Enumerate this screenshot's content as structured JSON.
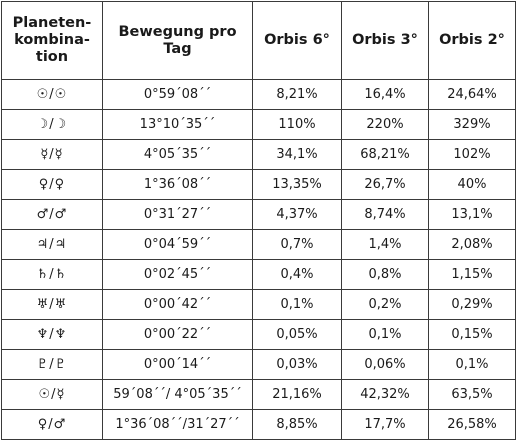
{
  "table": {
    "headers": [
      "Planeten-\nkombina-\ntion",
      "Bewegung pro\nTag",
      "Orbis 6°",
      "Orbis 3°",
      "Orbis 2°"
    ],
    "rows": [
      [
        "☉/☉",
        "0°59´08´´",
        "8,21%",
        "16,4%",
        "24,64%"
      ],
      [
        "☽/☽",
        "13°10´35´´",
        "110%",
        "220%",
        "329%"
      ],
      [
        "☿/☿",
        "4°05´35´´",
        "34,1%",
        "68,21%",
        "102%"
      ],
      [
        "♀/♀",
        "1°36´08´´",
        "13,35%",
        "26,7%",
        "40%"
      ],
      [
        "♂/♂",
        "0°31´27´´",
        "4,37%",
        "8,74%",
        "13,1%"
      ],
      [
        "♃/♃",
        "0°04´59´´",
        "0,7%",
        "1,4%",
        "2,08%"
      ],
      [
        "♄/♄",
        "0°02´45´´",
        "0,4%",
        "0,8%",
        "1,15%"
      ],
      [
        "♅/♅",
        "0°00´42´´",
        "0,1%",
        "0,2%",
        "0,29%"
      ],
      [
        "♆/♆",
        "0°00´22´´",
        "0,05%",
        "0,1%",
        "0,15%"
      ],
      [
        "♇/♇",
        "0°00´14´´",
        "0,03%",
        "0,06%",
        "0,1%"
      ],
      [
        "☉/☿",
        "59´08´´/ 4°05´35´´",
        "21,16%",
        "42,32%",
        "63,5%"
      ],
      [
        "♀/♂",
        "1°36´08´´/31´27´´",
        "8,85%",
        "17,7%",
        "26,58%"
      ]
    ]
  }
}
